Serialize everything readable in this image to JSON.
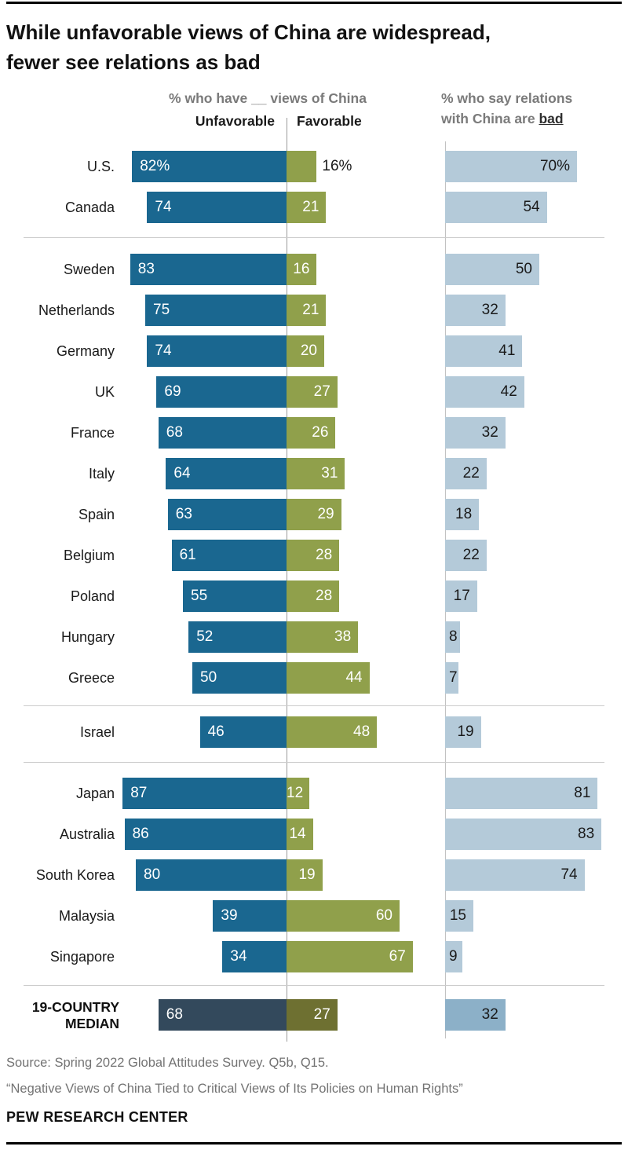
{
  "title": {
    "line1": "While unfavorable views of China are widespread,",
    "line2": "fewer see relations as bad"
  },
  "left_chart": {
    "header": "% who have __ views of China",
    "column_unfavorable": "Unfavorable",
    "column_favorable": "Favorable"
  },
  "right_chart": {
    "header_line1": "% who say relations",
    "header_line2_prefix": "with China are ",
    "header_line2_emphasis": "bad"
  },
  "colors": {
    "unfavorable": "#1a6790",
    "favorable": "#90a04b",
    "relations_bad": "#b4cad9",
    "median_unfavorable": "#33495c",
    "median_favorable": "#6e7031",
    "median_relations_bad": "#8cb0c8",
    "axis_left": "#9a9a9a",
    "axis_right": "#c2c2c2",
    "divider": "#cccccc",
    "bar_text_light": "#ffffff",
    "bar_text_dark": "#1a1a1a"
  },
  "rows": [
    {
      "label": "U.S.",
      "unfavorable": 82,
      "favorable": 16,
      "bad": 70,
      "unfavorable_label": "82%",
      "favorable_label": "16%",
      "bad_label": "70%",
      "favorable_label_outside": true,
      "median": false
    },
    {
      "label": "Canada",
      "unfavorable": 74,
      "favorable": 21,
      "bad": 54,
      "unfavorable_label": "74",
      "favorable_label": "21",
      "bad_label": "54",
      "median": false
    },
    {
      "label": "Sweden",
      "unfavorable": 83,
      "favorable": 16,
      "bad": 50,
      "unfavorable_label": "83",
      "favorable_label": "16",
      "bad_label": "50",
      "median": false
    },
    {
      "label": "Netherlands",
      "unfavorable": 75,
      "favorable": 21,
      "bad": 32,
      "unfavorable_label": "75",
      "favorable_label": "21",
      "bad_label": "32",
      "median": false
    },
    {
      "label": "Germany",
      "unfavorable": 74,
      "favorable": 20,
      "bad": 41,
      "unfavorable_label": "74",
      "favorable_label": "20",
      "bad_label": "41",
      "median": false
    },
    {
      "label": "UK",
      "unfavorable": 69,
      "favorable": 27,
      "bad": 42,
      "unfavorable_label": "69",
      "favorable_label": "27",
      "bad_label": "42",
      "median": false
    },
    {
      "label": "France",
      "unfavorable": 68,
      "favorable": 26,
      "bad": 32,
      "unfavorable_label": "68",
      "favorable_label": "26",
      "bad_label": "32",
      "median": false
    },
    {
      "label": "Italy",
      "unfavorable": 64,
      "favorable": 31,
      "bad": 22,
      "unfavorable_label": "64",
      "favorable_label": "31",
      "bad_label": "22",
      "median": false
    },
    {
      "label": "Spain",
      "unfavorable": 63,
      "favorable": 29,
      "bad": 18,
      "unfavorable_label": "63",
      "favorable_label": "29",
      "bad_label": "18",
      "median": false
    },
    {
      "label": "Belgium",
      "unfavorable": 61,
      "favorable": 28,
      "bad": 22,
      "unfavorable_label": "61",
      "favorable_label": "28",
      "bad_label": "22",
      "median": false
    },
    {
      "label": "Poland",
      "unfavorable": 55,
      "favorable": 28,
      "bad": 17,
      "unfavorable_label": "55",
      "favorable_label": "28",
      "bad_label": "17",
      "median": false
    },
    {
      "label": "Hungary",
      "unfavorable": 52,
      "favorable": 38,
      "bad": 8,
      "unfavorable_label": "52",
      "favorable_label": "38",
      "bad_label": "8",
      "median": false
    },
    {
      "label": "Greece",
      "unfavorable": 50,
      "favorable": 44,
      "bad": 7,
      "unfavorable_label": "50",
      "favorable_label": "44",
      "bad_label": "7",
      "median": false
    },
    {
      "label": "Israel",
      "unfavorable": 46,
      "favorable": 48,
      "bad": 19,
      "unfavorable_label": "46",
      "favorable_label": "48",
      "bad_label": "19",
      "median": false
    },
    {
      "label": "Japan",
      "unfavorable": 87,
      "favorable": 12,
      "bad": 81,
      "unfavorable_label": "87",
      "favorable_label": "12",
      "bad_label": "81",
      "median": false
    },
    {
      "label": "Australia",
      "unfavorable": 86,
      "favorable": 14,
      "bad": 83,
      "unfavorable_label": "86",
      "favorable_label": "14",
      "bad_label": "83",
      "median": false
    },
    {
      "label": "South Korea",
      "unfavorable": 80,
      "favorable": 19,
      "bad": 74,
      "unfavorable_label": "80",
      "favorable_label": "19",
      "bad_label": "74",
      "median": false
    },
    {
      "label": "Malaysia",
      "unfavorable": 39,
      "favorable": 60,
      "bad": 15,
      "unfavorable_label": "39",
      "favorable_label": "60",
      "bad_label": "15",
      "median": false
    },
    {
      "label": "Singapore",
      "unfavorable": 34,
      "favorable": 67,
      "bad": 9,
      "unfavorable_label": "34",
      "favorable_label": "67",
      "bad_label": "9",
      "median": false
    },
    {
      "label": "19-COUNTRY MEDIAN",
      "label_line1": "19-COUNTRY",
      "label_line2": "MEDIAN",
      "unfavorable": 68,
      "favorable": 27,
      "bad": 32,
      "unfavorable_label": "68",
      "favorable_label": "27",
      "bad_label": "32",
      "median": true
    }
  ],
  "chart_data": {
    "type": "bar",
    "orientation": "horizontal",
    "title": "While unfavorable views of China are widespread, fewer see relations as bad",
    "categories": [
      "U.S.",
      "Canada",
      "Sweden",
      "Netherlands",
      "Germany",
      "UK",
      "France",
      "Italy",
      "Spain",
      "Belgium",
      "Poland",
      "Hungary",
      "Greece",
      "Israel",
      "Japan",
      "Australia",
      "South Korea",
      "Malaysia",
      "Singapore",
      "19-COUNTRY MEDIAN"
    ],
    "series": [
      {
        "name": "Unfavorable views of China",
        "values": [
          82,
          74,
          83,
          75,
          74,
          69,
          68,
          64,
          63,
          61,
          55,
          52,
          50,
          46,
          87,
          86,
          80,
          39,
          34,
          68
        ]
      },
      {
        "name": "Favorable views of China",
        "values": [
          16,
          21,
          16,
          21,
          20,
          27,
          26,
          31,
          29,
          28,
          28,
          38,
          44,
          48,
          12,
          14,
          19,
          60,
          67,
          27
        ]
      },
      {
        "name": "Relations with China are bad",
        "values": [
          70,
          54,
          50,
          32,
          41,
          42,
          32,
          22,
          18,
          22,
          17,
          8,
          7,
          19,
          81,
          83,
          74,
          15,
          9,
          32
        ]
      }
    ],
    "xlim": [
      0,
      100
    ],
    "grid": false,
    "legend_position": "top",
    "group_breaks_after": [
      "Canada",
      "Greece",
      "Israel",
      "Singapore"
    ]
  },
  "footer": {
    "source": "Source: Spring 2022 Global Attitudes Survey. Q5b, Q15.",
    "report": "“Negative Views of China Tied to Critical Views of Its Policies on Human Rights”",
    "brand": "PEW RESEARCH CENTER"
  }
}
